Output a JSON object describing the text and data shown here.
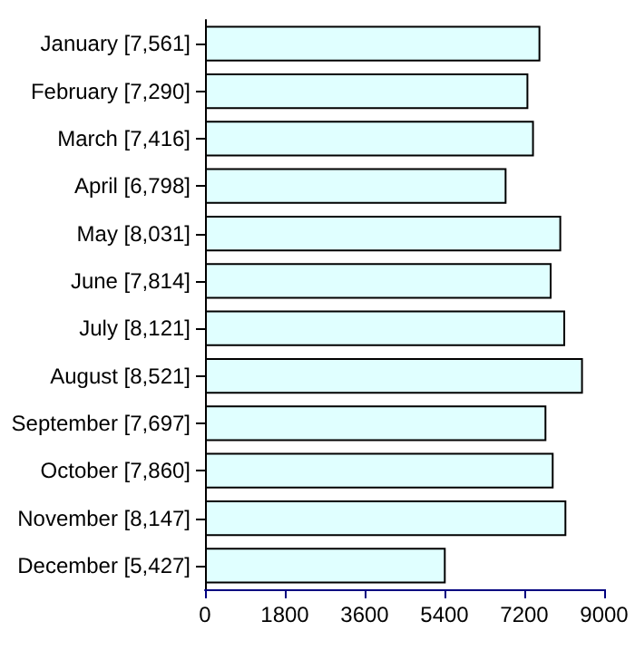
{
  "chart_data": {
    "type": "bar",
    "orientation": "horizontal",
    "categories": [
      "January [7,561]",
      "February [7,290]",
      "March [7,416]",
      "April [6,798]",
      "May [8,031]",
      "June [7,814]",
      "July [8,121]",
      "August [8,521]",
      "September [7,697]",
      "October [7,860]",
      "November [8,147]",
      "December [5,427]"
    ],
    "values": [
      7561,
      7290,
      7416,
      6798,
      8031,
      7814,
      8121,
      8521,
      7697,
      7860,
      8147,
      5427
    ],
    "color": "#e0ffff",
    "xlim": [
      0,
      9000
    ],
    "xticks": [
      0,
      1800,
      3600,
      5400,
      7200,
      9000
    ],
    "grid": false
  }
}
